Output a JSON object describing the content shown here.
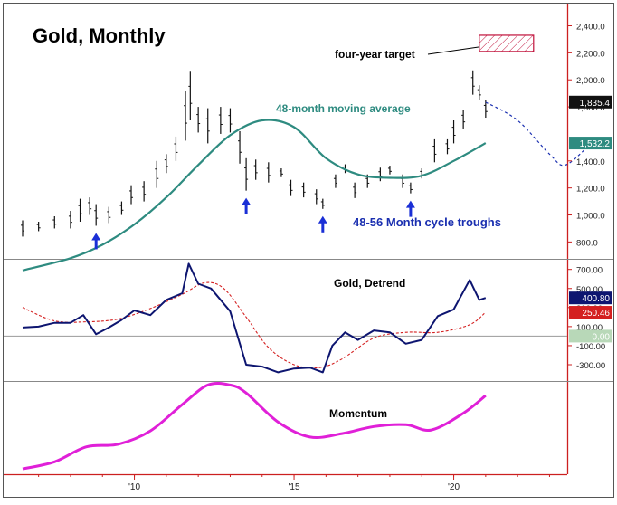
{
  "colors": {
    "price_bars": "#111111",
    "moving_average": "#2e8b80",
    "projection": "#1a2fb0",
    "arrows": "#1a2fd6",
    "detrend_line": "#0d1570",
    "detrend_signal": "#d42020",
    "momentum": "#e020d8",
    "axis_line": "#cc2020",
    "target_box": "#c0103a"
  },
  "chart_data": [
    {
      "type": "candlestick",
      "title": "Gold, Monthly",
      "ylim": [
        700,
        2500
      ],
      "y_ticks": [
        "2,400.0",
        "2,200.0",
        "2,000.0",
        "1,800.0",
        "1,400.0",
        "1,200.0",
        "1,000.0",
        "800.0"
      ],
      "x_ticks": [
        "'10",
        "'15",
        "'20"
      ],
      "price_series": [
        {
          "t": 2006.5,
          "low": 840,
          "high": 960
        },
        {
          "t": 2007.0,
          "low": 880,
          "high": 950
        },
        {
          "t": 2007.5,
          "low": 900,
          "high": 990
        },
        {
          "t": 2008.0,
          "low": 900,
          "high": 1030
        },
        {
          "t": 2008.3,
          "low": 950,
          "high": 1120
        },
        {
          "t": 2008.6,
          "low": 1000,
          "high": 1130
        },
        {
          "t": 2008.8,
          "low": 920,
          "high": 1080
        },
        {
          "t": 2009.2,
          "low": 940,
          "high": 1060
        },
        {
          "t": 2009.6,
          "low": 1000,
          "high": 1100
        },
        {
          "t": 2009.9,
          "low": 1080,
          "high": 1220
        },
        {
          "t": 2010.3,
          "low": 1100,
          "high": 1250
        },
        {
          "t": 2010.7,
          "low": 1200,
          "high": 1400
        },
        {
          "t": 2011.0,
          "low": 1310,
          "high": 1450
        },
        {
          "t": 2011.3,
          "low": 1400,
          "high": 1580
        },
        {
          "t": 2011.6,
          "low": 1550,
          "high": 1920
        },
        {
          "t": 2011.75,
          "low": 1700,
          "high": 2060
        },
        {
          "t": 2012.0,
          "low": 1610,
          "high": 1800
        },
        {
          "t": 2012.3,
          "low": 1530,
          "high": 1790
        },
        {
          "t": 2012.7,
          "low": 1600,
          "high": 1800
        },
        {
          "t": 2013.0,
          "low": 1610,
          "high": 1790
        },
        {
          "t": 2013.3,
          "low": 1380,
          "high": 1620
        },
        {
          "t": 2013.5,
          "low": 1180,
          "high": 1420
        },
        {
          "t": 2013.8,
          "low": 1260,
          "high": 1410
        },
        {
          "t": 2014.2,
          "low": 1240,
          "high": 1390
        },
        {
          "t": 2014.6,
          "low": 1280,
          "high": 1345
        },
        {
          "t": 2014.9,
          "low": 1140,
          "high": 1260
        },
        {
          "t": 2015.3,
          "low": 1130,
          "high": 1240
        },
        {
          "t": 2015.7,
          "low": 1080,
          "high": 1190
        },
        {
          "t": 2015.9,
          "low": 1045,
          "high": 1120
        },
        {
          "t": 2016.3,
          "low": 1200,
          "high": 1300
        },
        {
          "t": 2016.6,
          "low": 1310,
          "high": 1375
        },
        {
          "t": 2016.9,
          "low": 1125,
          "high": 1240
        },
        {
          "t": 2017.3,
          "low": 1200,
          "high": 1300
        },
        {
          "t": 2017.7,
          "low": 1250,
          "high": 1350
        },
        {
          "t": 2018.0,
          "low": 1300,
          "high": 1365
        },
        {
          "t": 2018.4,
          "low": 1200,
          "high": 1300
        },
        {
          "t": 2018.65,
          "low": 1160,
          "high": 1240
        },
        {
          "t": 2019.0,
          "low": 1270,
          "high": 1345
        },
        {
          "t": 2019.4,
          "low": 1390,
          "high": 1560
        },
        {
          "t": 2019.8,
          "low": 1450,
          "high": 1560
        },
        {
          "t": 2020.0,
          "low": 1530,
          "high": 1700
        },
        {
          "t": 2020.3,
          "low": 1640,
          "high": 1780
        },
        {
          "t": 2020.6,
          "low": 1890,
          "high": 2070
        },
        {
          "t": 2020.8,
          "low": 1850,
          "high": 1960
        },
        {
          "t": 2021.0,
          "low": 1720,
          "high": 1850
        }
      ],
      "moving_average_48": [
        {
          "t": 2006.5,
          "v": 590
        },
        {
          "t": 2008.0,
          "v": 680
        },
        {
          "t": 2009.0,
          "v": 780
        },
        {
          "t": 2010.0,
          "v": 930
        },
        {
          "t": 2011.0,
          "v": 1130
        },
        {
          "t": 2012.0,
          "v": 1370
        },
        {
          "t": 2013.0,
          "v": 1590
        },
        {
          "t": 2014.0,
          "v": 1700
        },
        {
          "t": 2015.0,
          "v": 1650
        },
        {
          "t": 2016.0,
          "v": 1420
        },
        {
          "t": 2017.0,
          "v": 1300
        },
        {
          "t": 2018.0,
          "v": 1275
        },
        {
          "t": 2019.0,
          "v": 1290
        },
        {
          "t": 2020.0,
          "v": 1400
        },
        {
          "t": 2021.0,
          "v": 1532
        }
      ],
      "projection": [
        {
          "t": 2021.0,
          "v": 1835
        },
        {
          "t": 2022.0,
          "v": 1700
        },
        {
          "t": 2023.0,
          "v": 1450
        },
        {
          "t": 2023.5,
          "v": 1370
        },
        {
          "t": 2024.3,
          "v": 1530
        }
      ],
      "target_zone": {
        "t0": 2020.8,
        "t1": 2022.5,
        "low": 2210,
        "high": 2330
      },
      "cycle_trough_times": [
        2008.8,
        2013.5,
        2015.9,
        2018.65
      ],
      "value_flags": [
        {
          "label": "1,835.4",
          "value": 1835.4,
          "color": "#111111"
        },
        {
          "label": "1,532.2",
          "value": 1532.2,
          "color": "#2e8b80"
        }
      ],
      "annotations": {
        "ma_label": "48-month moving average",
        "target_label": "four-year target",
        "cycle_label": "48-56 Month cycle troughs"
      }
    },
    {
      "type": "line",
      "title": "Gold, Detrend",
      "ylim": [
        -420,
        780
      ],
      "y_ticks": [
        "700.00",
        "500.00",
        "300.00",
        "100.00",
        "-100.00",
        "-300.00"
      ],
      "detrend_series": [
        {
          "t": 2006.5,
          "v": 90
        },
        {
          "t": 2007.0,
          "v": 100
        },
        {
          "t": 2007.5,
          "v": 140
        },
        {
          "t": 2008.0,
          "v": 140
        },
        {
          "t": 2008.4,
          "v": 220
        },
        {
          "t": 2008.8,
          "v": 20
        },
        {
          "t": 2009.2,
          "v": 90
        },
        {
          "t": 2009.6,
          "v": 170
        },
        {
          "t": 2010.0,
          "v": 270
        },
        {
          "t": 2010.5,
          "v": 220
        },
        {
          "t": 2011.0,
          "v": 380
        },
        {
          "t": 2011.5,
          "v": 450
        },
        {
          "t": 2011.7,
          "v": 760
        },
        {
          "t": 2012.0,
          "v": 550
        },
        {
          "t": 2012.4,
          "v": 500
        },
        {
          "t": 2013.0,
          "v": 260
        },
        {
          "t": 2013.5,
          "v": -300
        },
        {
          "t": 2014.0,
          "v": -320
        },
        {
          "t": 2014.5,
          "v": -380
        },
        {
          "t": 2015.0,
          "v": -340
        },
        {
          "t": 2015.5,
          "v": -330
        },
        {
          "t": 2015.9,
          "v": -380
        },
        {
          "t": 2016.2,
          "v": -100
        },
        {
          "t": 2016.6,
          "v": 40
        },
        {
          "t": 2017.0,
          "v": -40
        },
        {
          "t": 2017.5,
          "v": 60
        },
        {
          "t": 2018.0,
          "v": 40
        },
        {
          "t": 2018.5,
          "v": -80
        },
        {
          "t": 2019.0,
          "v": -40
        },
        {
          "t": 2019.5,
          "v": 210
        },
        {
          "t": 2020.0,
          "v": 280
        },
        {
          "t": 2020.5,
          "v": 590
        },
        {
          "t": 2020.8,
          "v": 380
        },
        {
          "t": 2021.0,
          "v": 400.8
        }
      ],
      "signal_series": [
        {
          "t": 2006.5,
          "v": 300
        },
        {
          "t": 2007.5,
          "v": 160
        },
        {
          "t": 2008.5,
          "v": 150
        },
        {
          "t": 2009.5,
          "v": 180
        },
        {
          "t": 2010.5,
          "v": 290
        },
        {
          "t": 2011.5,
          "v": 440
        },
        {
          "t": 2012.2,
          "v": 560
        },
        {
          "t": 2012.8,
          "v": 500
        },
        {
          "t": 2013.5,
          "v": 200
        },
        {
          "t": 2014.2,
          "v": -120
        },
        {
          "t": 2015.0,
          "v": -300
        },
        {
          "t": 2015.8,
          "v": -330
        },
        {
          "t": 2016.5,
          "v": -240
        },
        {
          "t": 2017.5,
          "v": -20
        },
        {
          "t": 2018.5,
          "v": 40
        },
        {
          "t": 2019.5,
          "v": 40
        },
        {
          "t": 2020.5,
          "v": 120
        },
        {
          "t": 2021.0,
          "v": 250.5
        }
      ],
      "zero_line": 0,
      "value_flags": [
        {
          "label": "400.80",
          "value": 400.8,
          "color": "#0d1570"
        },
        {
          "label": "250.46",
          "value": 250.46,
          "color": "#d42020"
        },
        {
          "label": "0.00",
          "value": 0,
          "color": "#b8d8b8"
        }
      ]
    },
    {
      "type": "line",
      "title": "Momentum",
      "ylim": [
        0,
        100
      ],
      "momentum_series": [
        {
          "t": 2006.5,
          "v": 2
        },
        {
          "t": 2007.5,
          "v": 10
        },
        {
          "t": 2008.5,
          "v": 27
        },
        {
          "t": 2009.5,
          "v": 30
        },
        {
          "t": 2010.5,
          "v": 45
        },
        {
          "t": 2011.5,
          "v": 75
        },
        {
          "t": 2012.3,
          "v": 97
        },
        {
          "t": 2013.0,
          "v": 97
        },
        {
          "t": 2013.5,
          "v": 88
        },
        {
          "t": 2014.5,
          "v": 55
        },
        {
          "t": 2015.5,
          "v": 38
        },
        {
          "t": 2016.5,
          "v": 42
        },
        {
          "t": 2017.5,
          "v": 50
        },
        {
          "t": 2018.5,
          "v": 52
        },
        {
          "t": 2019.3,
          "v": 46
        },
        {
          "t": 2020.3,
          "v": 65
        },
        {
          "t": 2021.0,
          "v": 85
        }
      ]
    }
  ]
}
